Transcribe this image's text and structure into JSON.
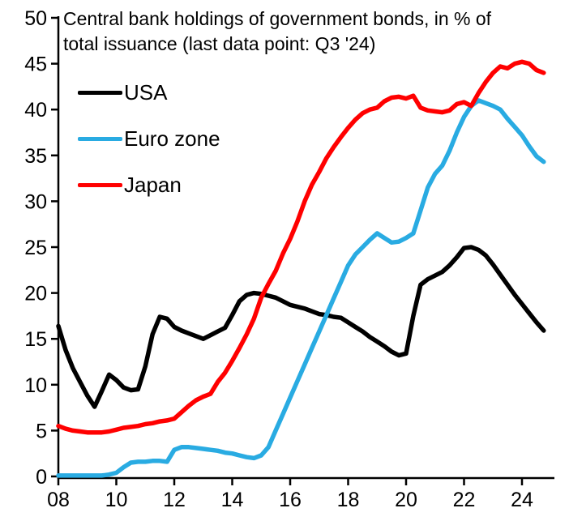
{
  "chart_data": {
    "type": "line",
    "title_line1": "Central bank holdings of government bonds, in % of",
    "title_line2": "total issuance (last data point: Q3 '24)",
    "last_data_point": "Q3 '24",
    "unit": "% of total issuance",
    "grid": false,
    "legend_position": "top-left-inside",
    "ylim": [
      0,
      50
    ],
    "xlim": [
      2008,
      2024.75
    ],
    "y_ticks": {
      "values": [
        0,
        5,
        10,
        15,
        20,
        25,
        30,
        35,
        40,
        45,
        50
      ],
      "labels": [
        "0",
        "5",
        "10",
        "15",
        "20",
        "25",
        "30",
        "35",
        "40",
        "45",
        "50"
      ]
    },
    "x_ticks": {
      "values": [
        2008,
        2010,
        2012,
        2014,
        2016,
        2018,
        2020,
        2022,
        2024
      ],
      "labels": [
        "08",
        "10",
        "12",
        "14",
        "16",
        "18",
        "20",
        "22",
        "24"
      ]
    },
    "x": [
      2008.0,
      2008.25,
      2008.5,
      2008.75,
      2009.0,
      2009.25,
      2009.5,
      2009.75,
      2010.0,
      2010.25,
      2010.5,
      2010.75,
      2011.0,
      2011.25,
      2011.5,
      2011.75,
      2012.0,
      2012.25,
      2012.5,
      2012.75,
      2013.0,
      2013.25,
      2013.5,
      2013.75,
      2014.0,
      2014.25,
      2014.5,
      2014.75,
      2015.0,
      2015.25,
      2015.5,
      2015.75,
      2016.0,
      2016.25,
      2016.5,
      2016.75,
      2017.0,
      2017.25,
      2017.5,
      2017.75,
      2018.0,
      2018.25,
      2018.5,
      2018.75,
      2019.0,
      2019.25,
      2019.5,
      2019.75,
      2020.0,
      2020.25,
      2020.5,
      2020.75,
      2021.0,
      2021.25,
      2021.5,
      2021.75,
      2022.0,
      2022.25,
      2022.5,
      2022.75,
      2023.0,
      2023.25,
      2023.5,
      2023.75,
      2024.0,
      2024.25,
      2024.5,
      2024.75
    ],
    "series": [
      {
        "name": "USA",
        "color": "#000000",
        "values": [
          16.4,
          13.8,
          11.8,
          10.3,
          8.8,
          7.6,
          9.3,
          11.1,
          10.5,
          9.7,
          9.4,
          9.5,
          12.0,
          15.5,
          17.4,
          17.2,
          16.3,
          15.9,
          15.6,
          15.3,
          15.0,
          15.4,
          15.8,
          16.2,
          17.6,
          19.1,
          19.8,
          20.0,
          19.9,
          19.7,
          19.5,
          19.1,
          18.7,
          18.5,
          18.3,
          18.0,
          17.7,
          17.6,
          17.4,
          17.3,
          16.8,
          16.3,
          15.8,
          15.2,
          14.7,
          14.2,
          13.6,
          13.2,
          13.4,
          17.5,
          20.9,
          21.5,
          21.9,
          22.3,
          23.0,
          23.9,
          24.9,
          25.0,
          24.7,
          24.1,
          23.1,
          22.0,
          20.9,
          19.8,
          18.8,
          17.8,
          16.8,
          15.9
        ]
      },
      {
        "name": "Euro zone",
        "color": "#29ABE2",
        "values": [
          0.1,
          0.1,
          0.1,
          0.1,
          0.1,
          0.1,
          0.1,
          0.2,
          0.4,
          1.0,
          1.5,
          1.6,
          1.6,
          1.7,
          1.7,
          1.6,
          2.9,
          3.2,
          3.2,
          3.1,
          3.0,
          2.9,
          2.8,
          2.6,
          2.5,
          2.3,
          2.1,
          2.0,
          2.3,
          3.2,
          5.0,
          6.8,
          8.6,
          10.4,
          12.2,
          14.0,
          15.8,
          17.6,
          19.4,
          21.2,
          23.0,
          24.2,
          25.0,
          25.8,
          26.5,
          26.0,
          25.5,
          25.6,
          26.0,
          26.5,
          29.0,
          31.5,
          33.0,
          33.9,
          35.5,
          37.5,
          39.2,
          40.4,
          41.0,
          40.7,
          40.4,
          40.0,
          39.0,
          38.1,
          37.2,
          36.0,
          34.9,
          34.3
        ]
      },
      {
        "name": "Japan",
        "color": "#FF0000",
        "values": [
          5.5,
          5.2,
          5.0,
          4.9,
          4.8,
          4.8,
          4.8,
          4.9,
          5.1,
          5.3,
          5.4,
          5.5,
          5.7,
          5.8,
          6.0,
          6.1,
          6.3,
          7.0,
          7.7,
          8.3,
          8.7,
          9.0,
          10.3,
          11.3,
          12.6,
          14.0,
          15.5,
          17.2,
          19.5,
          21.0,
          22.4,
          24.3,
          25.9,
          27.8,
          30.0,
          31.8,
          33.2,
          34.7,
          35.9,
          37.0,
          38.0,
          38.9,
          39.6,
          40.0,
          40.2,
          40.9,
          41.3,
          41.4,
          41.2,
          41.5,
          40.2,
          39.9,
          39.8,
          39.7,
          39.9,
          40.6,
          40.8,
          40.4,
          41.8,
          43.0,
          44.0,
          44.7,
          44.5,
          45.0,
          45.2,
          45.0,
          44.3,
          44.0
        ]
      }
    ]
  },
  "colors": {
    "axis": "#000000",
    "background": "#FFFFFF",
    "usa": "#000000",
    "euro_zone": "#29ABE2",
    "japan": "#FF0000"
  }
}
